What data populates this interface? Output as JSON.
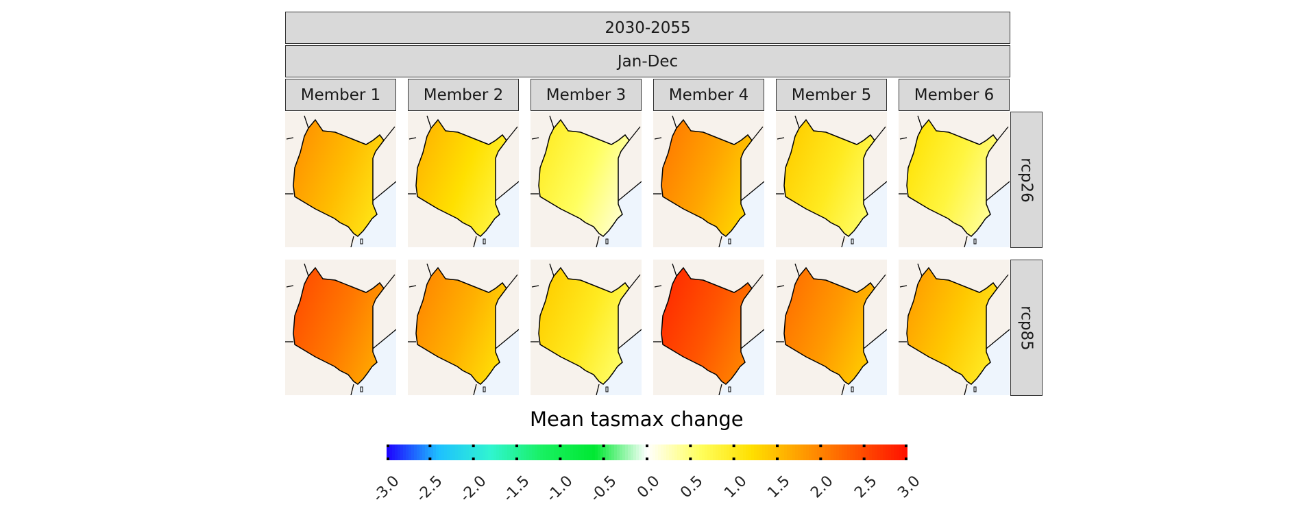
{
  "facet_top": {
    "period": "2030-2055",
    "season": "Jan-Dec"
  },
  "members": [
    "Member 1",
    "Member 2",
    "Member 3",
    "Member 4",
    "Member 5",
    "Member 6"
  ],
  "scenarios": [
    "rcp26",
    "rcp85"
  ],
  "legend": {
    "title": "Mean tasmax change",
    "ticks": [
      "-3.0",
      "-2.5",
      "-2.0",
      "-1.5",
      "-1.0",
      "-0.5",
      "0.0",
      "0.5",
      "1.0",
      "1.5",
      "2.0",
      "2.5",
      "3.0"
    ],
    "range": [
      -3.0,
      3.0
    ],
    "colors": [
      "#1e00ff",
      "#1ec0ff",
      "#30f5d0",
      "#18f060",
      "#00e832",
      "#ffffff",
      "#ffff60",
      "#ffe000",
      "#ff9a00",
      "#ff5500",
      "#ff1000"
    ]
  },
  "colors": {
    "land_bg": "#f7f2ec",
    "sea": "#eef5fd",
    "strip_fill": "#d9d9d9",
    "border": "#000000"
  },
  "panel_values": {
    "rcp26": [
      1.5,
      1.2,
      0.6,
      1.7,
      1.0,
      0.8
    ],
    "rcp85": [
      2.1,
      1.6,
      1.0,
      2.4,
      1.8,
      1.4
    ]
  }
}
